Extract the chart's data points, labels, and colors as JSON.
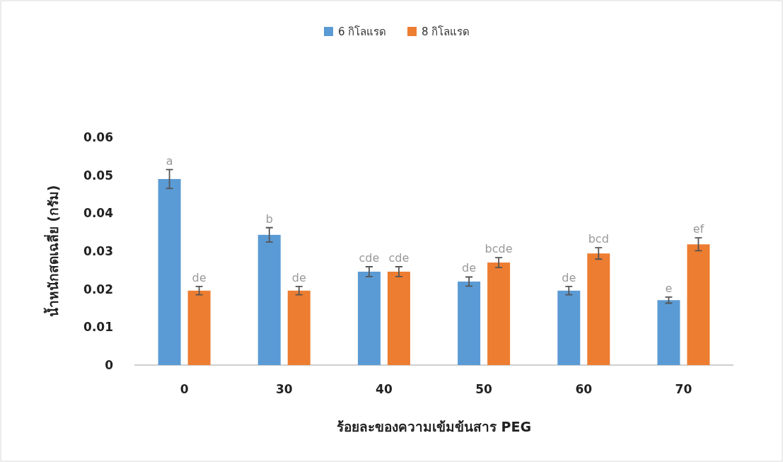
{
  "chart_data": {
    "type": "bar",
    "xlabel": "ร้อยละของความเข้มข้นสาร PEG",
    "ylabel": "น้ำหนักสดเฉลี่ย (กรัม)",
    "categories": [
      "0",
      "30",
      "40",
      "50",
      "60",
      "70"
    ],
    "series": [
      {
        "name": "6 กิโลแรด",
        "color": "#5b9bd5",
        "values": [
          0.049,
          0.0343,
          0.0246,
          0.022,
          0.0196,
          0.0171
        ],
        "errors": [
          0.0025,
          0.0019,
          0.0013,
          0.0012,
          0.0011,
          0.0008
        ],
        "value_labels": [
          "a",
          "b",
          "cde",
          "de",
          "de",
          "e"
        ]
      },
      {
        "name": "8 กิโลแรด",
        "color": "#ed7d31",
        "values": [
          0.0196,
          0.0196,
          0.0246,
          0.027,
          0.0294,
          0.0318
        ],
        "errors": [
          0.0011,
          0.0011,
          0.0013,
          0.0013,
          0.0015,
          0.0017
        ],
        "value_labels": [
          "de",
          "de",
          "cde",
          "bcde",
          "bcd",
          "ef"
        ]
      }
    ],
    "ylim": [
      0,
      0.06
    ],
    "yticks": [
      {
        "value": 0,
        "label": "0"
      },
      {
        "value": 0.01,
        "label": "0.01"
      },
      {
        "value": 0.02,
        "label": "0.02"
      },
      {
        "value": 0.03,
        "label": "0.03"
      },
      {
        "value": 0.04,
        "label": "0.04"
      },
      {
        "value": 0.05,
        "label": "0.05"
      },
      {
        "value": 0.06,
        "label": "0.06"
      }
    ],
    "grid": false,
    "legend": "top"
  }
}
